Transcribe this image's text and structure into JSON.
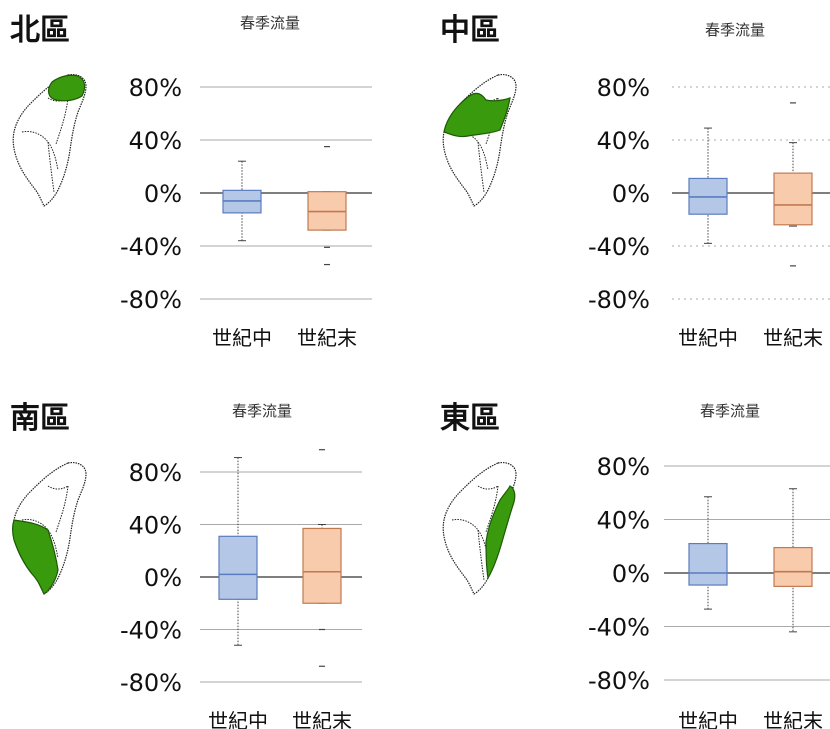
{
  "colors": {
    "box_mid_century": "#b4c7e7",
    "box_mid_century_stroke": "#5b7cbf",
    "box_end_century": "#f8cbad",
    "box_end_century_stroke": "#c07a52",
    "map_highlight": "#3a9a0e"
  },
  "panels": [
    {
      "region_label": "北區",
      "map_region": "north",
      "gridline_style": "solid"
    },
    {
      "region_label": "中區",
      "map_region": "central",
      "gridline_style": "dotted"
    },
    {
      "region_label": "南區",
      "map_region": "south",
      "gridline_style": "solid"
    },
    {
      "region_label": "東區",
      "map_region": "east",
      "gridline_style": "solid"
    }
  ],
  "chart_data": [
    {
      "type": "boxplot",
      "title": "春季流量",
      "ylim": [
        -80,
        80
      ],
      "yticks": [
        "80%",
        "40%",
        "0%",
        "-40%",
        "-80%"
      ],
      "yticks_values": [
        80,
        40,
        0,
        -40,
        -80
      ],
      "categories": [
        "世紀中",
        "世紀末"
      ],
      "series": [
        {
          "category": "世紀中",
          "whisker_low": -36,
          "q1": -15,
          "median": -6,
          "q3": 2,
          "whisker_high": 24,
          "outliers": []
        },
        {
          "category": "世紀末",
          "whisker_low": -28,
          "q1": -28,
          "median": -14,
          "q3": 1,
          "whisker_high": 1,
          "outliers": [
            -41,
            -54,
            35
          ]
        }
      ]
    },
    {
      "type": "boxplot",
      "title": "春季流量",
      "ylim": [
        -80,
        80
      ],
      "yticks": [
        "80%",
        "40%",
        "0%",
        "-40%",
        "-80%"
      ],
      "yticks_values": [
        80,
        40,
        0,
        -40,
        -80
      ],
      "categories": [
        "世紀中",
        "世紀末"
      ],
      "series": [
        {
          "category": "世紀中",
          "whisker_low": -38,
          "q1": -16,
          "median": -3,
          "q3": 11,
          "whisker_high": 49,
          "outliers": []
        },
        {
          "category": "世紀末",
          "whisker_low": -25,
          "q1": -24,
          "median": -9,
          "q3": 15,
          "whisker_high": 38,
          "outliers": [
            -55,
            68
          ]
        }
      ]
    },
    {
      "type": "boxplot",
      "title": "春季流量",
      "ylim": [
        -80,
        80
      ],
      "yticks": [
        "80%",
        "40%",
        "0%",
        "-40%",
        "-80%"
      ],
      "yticks_values": [
        80,
        40,
        0,
        -40,
        -80
      ],
      "categories": [
        "世紀中",
        "世紀末"
      ],
      "series": [
        {
          "category": "世紀中",
          "whisker_low": -52,
          "q1": -17,
          "median": 2,
          "q3": 31,
          "whisker_high": 91,
          "outliers": []
        },
        {
          "category": "世紀末",
          "whisker_low": -20,
          "q1": -20,
          "median": 4,
          "q3": 37,
          "whisker_high": 40,
          "outliers": [
            -40,
            -68,
            97
          ]
        }
      ]
    },
    {
      "type": "boxplot",
      "title": "春季流量",
      "ylim": [
        -80,
        80
      ],
      "yticks": [
        "80%",
        "40%",
        "0%",
        "-40%",
        "-80%"
      ],
      "yticks_values": [
        80,
        40,
        0,
        -40,
        -80
      ],
      "categories": [
        "世紀中",
        "世紀末"
      ],
      "series": [
        {
          "category": "世紀中",
          "whisker_low": -27,
          "q1": -9,
          "median": 0,
          "q3": 22,
          "whisker_high": 57,
          "outliers": []
        },
        {
          "category": "世紀末",
          "whisker_low": -44,
          "q1": -10,
          "median": 1,
          "q3": 19,
          "whisker_high": 63,
          "outliers": []
        }
      ]
    }
  ]
}
